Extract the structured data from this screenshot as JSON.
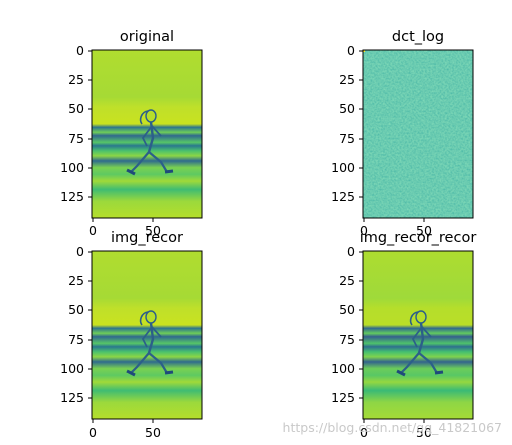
{
  "watermark": "https://blog.csdn.net/qq_41821067",
  "chart_data": [
    {
      "type": "heatmap",
      "title": "original",
      "image_shape": [
        144,
        92
      ],
      "xticks": [
        0,
        50
      ],
      "yticks": [
        0,
        25,
        50,
        75,
        100,
        125
      ],
      "colormap": "viridis",
      "content": "photo of a jogger on a beach: light sky, dark horizontal sea bands, light sand"
    },
    {
      "type": "heatmap",
      "title": "dct_log",
      "image_shape": [
        144,
        92
      ],
      "xticks": [
        0,
        50
      ],
      "yticks": [
        0,
        25,
        50,
        75,
        100,
        125
      ],
      "colormap": "viridis",
      "content": "log-magnitude DCT coefficients, near-uniform teal noise"
    },
    {
      "type": "heatmap",
      "title": "img_recor",
      "image_shape": [
        144,
        92
      ],
      "xticks": [
        0,
        50
      ],
      "yticks": [
        0,
        25,
        50,
        75,
        100,
        125
      ],
      "colormap": "viridis",
      "content": "reconstructed image identical to original"
    },
    {
      "type": "heatmap",
      "title": "img_recor_recor",
      "image_shape": [
        144,
        92
      ],
      "xticks": [
        0,
        50
      ],
      "yticks": [
        0,
        25,
        50,
        75,
        100,
        125
      ],
      "colormap": "viridis",
      "content": "twice-reconstructed image, slightly darker and smoother"
    }
  ]
}
